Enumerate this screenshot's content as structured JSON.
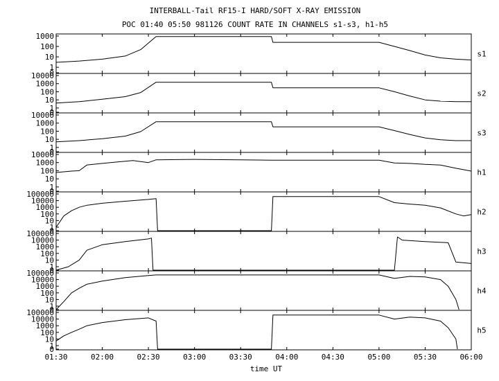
{
  "chart_data": {
    "type": "line",
    "title": "INTERBALL-Tail RF15-I HARD/SOFT X-RAY EMISSION",
    "subtitle": "POC 01:40 05:50 981126  COUNT RATE IN CHANNELS s1-s3, h1-h5",
    "xlabel": "time UT",
    "xlim": [
      "01:30",
      "06:00"
    ],
    "x_ticks": [
      "01:30",
      "02:00",
      "02:30",
      "03:00",
      "03:30",
      "04:00",
      "04:30",
      "05:00",
      "05:30",
      "06:00"
    ],
    "y_scale": "log",
    "panels": [
      {
        "name": "s1",
        "ylim": [
          0.3,
          1000
        ],
        "y_ticks": [
          "1000",
          "100",
          "10",
          "1",
          "0"
        ],
        "x": [
          "01:30",
          "01:45",
          "02:00",
          "02:15",
          "02:25",
          "02:35",
          "02:45",
          "03:00",
          "03:30",
          "03:50",
          "03:51",
          "04:30",
          "05:00",
          "05:10",
          "05:20",
          "05:30",
          "05:40",
          "05:50",
          "06:00"
        ],
        "values": [
          3,
          4,
          6,
          12,
          50,
          900,
          900,
          900,
          900,
          900,
          250,
          250,
          250,
          100,
          40,
          15,
          8,
          6,
          5
        ]
      },
      {
        "name": "s2",
        "ylim": [
          0.3,
          10000
        ],
        "y_ticks": [
          "10000",
          "1000",
          "100",
          "10",
          "1",
          "0"
        ],
        "x": [
          "01:30",
          "01:45",
          "02:00",
          "02:15",
          "02:25",
          "02:35",
          "02:45",
          "03:00",
          "03:30",
          "03:50",
          "03:51",
          "04:30",
          "05:00",
          "05:10",
          "05:20",
          "05:30",
          "05:40",
          "05:50",
          "06:00"
        ],
        "values": [
          4,
          6,
          12,
          25,
          80,
          1500,
          1500,
          1500,
          1500,
          1500,
          300,
          300,
          300,
          100,
          30,
          10,
          7,
          6,
          6
        ]
      },
      {
        "name": "s3",
        "ylim": [
          0.3,
          10000
        ],
        "y_ticks": [
          "10000",
          "1000",
          "100",
          "10",
          "1",
          "0"
        ],
        "x": [
          "01:30",
          "01:45",
          "02:00",
          "02:15",
          "02:25",
          "02:35",
          "02:45",
          "03:00",
          "03:30",
          "03:50",
          "03:51",
          "04:30",
          "05:00",
          "05:10",
          "05:20",
          "05:30",
          "05:40",
          "05:50",
          "06:00"
        ],
        "values": [
          5,
          7,
          12,
          25,
          90,
          1500,
          1500,
          1500,
          1500,
          1500,
          350,
          350,
          350,
          120,
          40,
          15,
          9,
          7,
          7
        ]
      },
      {
        "name": "h1",
        "ylim": [
          0.3,
          10000
        ],
        "y_ticks": [
          "10000",
          "1000",
          "100",
          "10",
          "1",
          "0"
        ],
        "x": [
          "01:30",
          "01:40",
          "01:45",
          "01:50",
          "02:00",
          "02:10",
          "02:20",
          "02:30",
          "02:35",
          "03:00",
          "03:30",
          "03:50",
          "04:30",
          "05:00",
          "05:10",
          "05:20",
          "05:30",
          "05:40",
          "05:50",
          "06:00"
        ],
        "values": [
          60,
          90,
          100,
          500,
          800,
          1200,
          1800,
          1000,
          2200,
          2500,
          2200,
          2000,
          2000,
          2000,
          900,
          800,
          600,
          500,
          200,
          90
        ]
      },
      {
        "name": "h2",
        "ylim": [
          0.3,
          100000
        ],
        "y_ticks": [
          "100000",
          "10000",
          "1000",
          "100",
          "10",
          "1",
          "0"
        ],
        "x": [
          "01:30",
          "01:35",
          "01:40",
          "01:45",
          "01:50",
          "02:00",
          "02:15",
          "02:30",
          "02:35",
          "02:36",
          "03:50",
          "03:51",
          "05:00",
          "05:10",
          "05:20",
          "05:30",
          "05:40",
          "05:50",
          "05:55",
          "06:00"
        ],
        "values": [
          1,
          50,
          300,
          1000,
          2000,
          4000,
          8000,
          15000,
          20000,
          0.3,
          0.3,
          40000,
          40000,
          5000,
          3000,
          2000,
          800,
          100,
          50,
          80
        ]
      },
      {
        "name": "h3",
        "ylim": [
          0.3,
          100000
        ],
        "y_ticks": [
          "100000",
          "10000",
          "1000",
          "100",
          "10",
          "1",
          "0"
        ],
        "x": [
          "01:30",
          "01:38",
          "01:45",
          "01:50",
          "02:00",
          "02:15",
          "02:30",
          "02:32",
          "02:33",
          "05:10",
          "05:12",
          "05:15",
          "05:30",
          "05:45",
          "05:50",
          "06:00"
        ],
        "values": [
          0.3,
          1,
          10,
          300,
          2000,
          6000,
          15000,
          20000,
          0.3,
          0.3,
          30000,
          10000,
          6000,
          4000,
          5,
          3
        ]
      },
      {
        "name": "h4",
        "ylim": [
          0.3,
          100000
        ],
        "y_ticks": [
          "100000",
          "10000",
          "1000",
          "100",
          "10",
          "1",
          "0"
        ],
        "x": [
          "01:30",
          "01:35",
          "01:40",
          "01:45",
          "01:50",
          "02:00",
          "02:15",
          "02:30",
          "02:35",
          "03:00",
          "03:50",
          "04:30",
          "05:00",
          "05:10",
          "05:20",
          "05:30",
          "05:40",
          "05:45",
          "05:50",
          "05:52"
        ],
        "values": [
          0.3,
          5,
          100,
          500,
          2000,
          6000,
          20000,
          40000,
          50000,
          50000,
          50000,
          50000,
          50000,
          15000,
          30000,
          25000,
          10000,
          1000,
          10,
          0.3
        ]
      },
      {
        "name": "h5",
        "ylim": [
          0.3,
          100000
        ],
        "y_ticks": [
          "100000",
          "10000",
          "1000",
          "100",
          "10",
          "1",
          "0"
        ],
        "x": [
          "01:30",
          "01:35",
          "01:40",
          "01:45",
          "01:50",
          "02:00",
          "02:15",
          "02:30",
          "02:35",
          "02:36",
          "03:50",
          "03:51",
          "05:00",
          "05:10",
          "05:20",
          "05:30",
          "05:40",
          "05:45",
          "05:50",
          "05:51"
        ],
        "values": [
          5,
          30,
          100,
          300,
          1000,
          3000,
          8000,
          15000,
          5000,
          0.3,
          0.3,
          40000,
          40000,
          10000,
          20000,
          15000,
          5000,
          500,
          10,
          0.3
        ]
      }
    ]
  }
}
